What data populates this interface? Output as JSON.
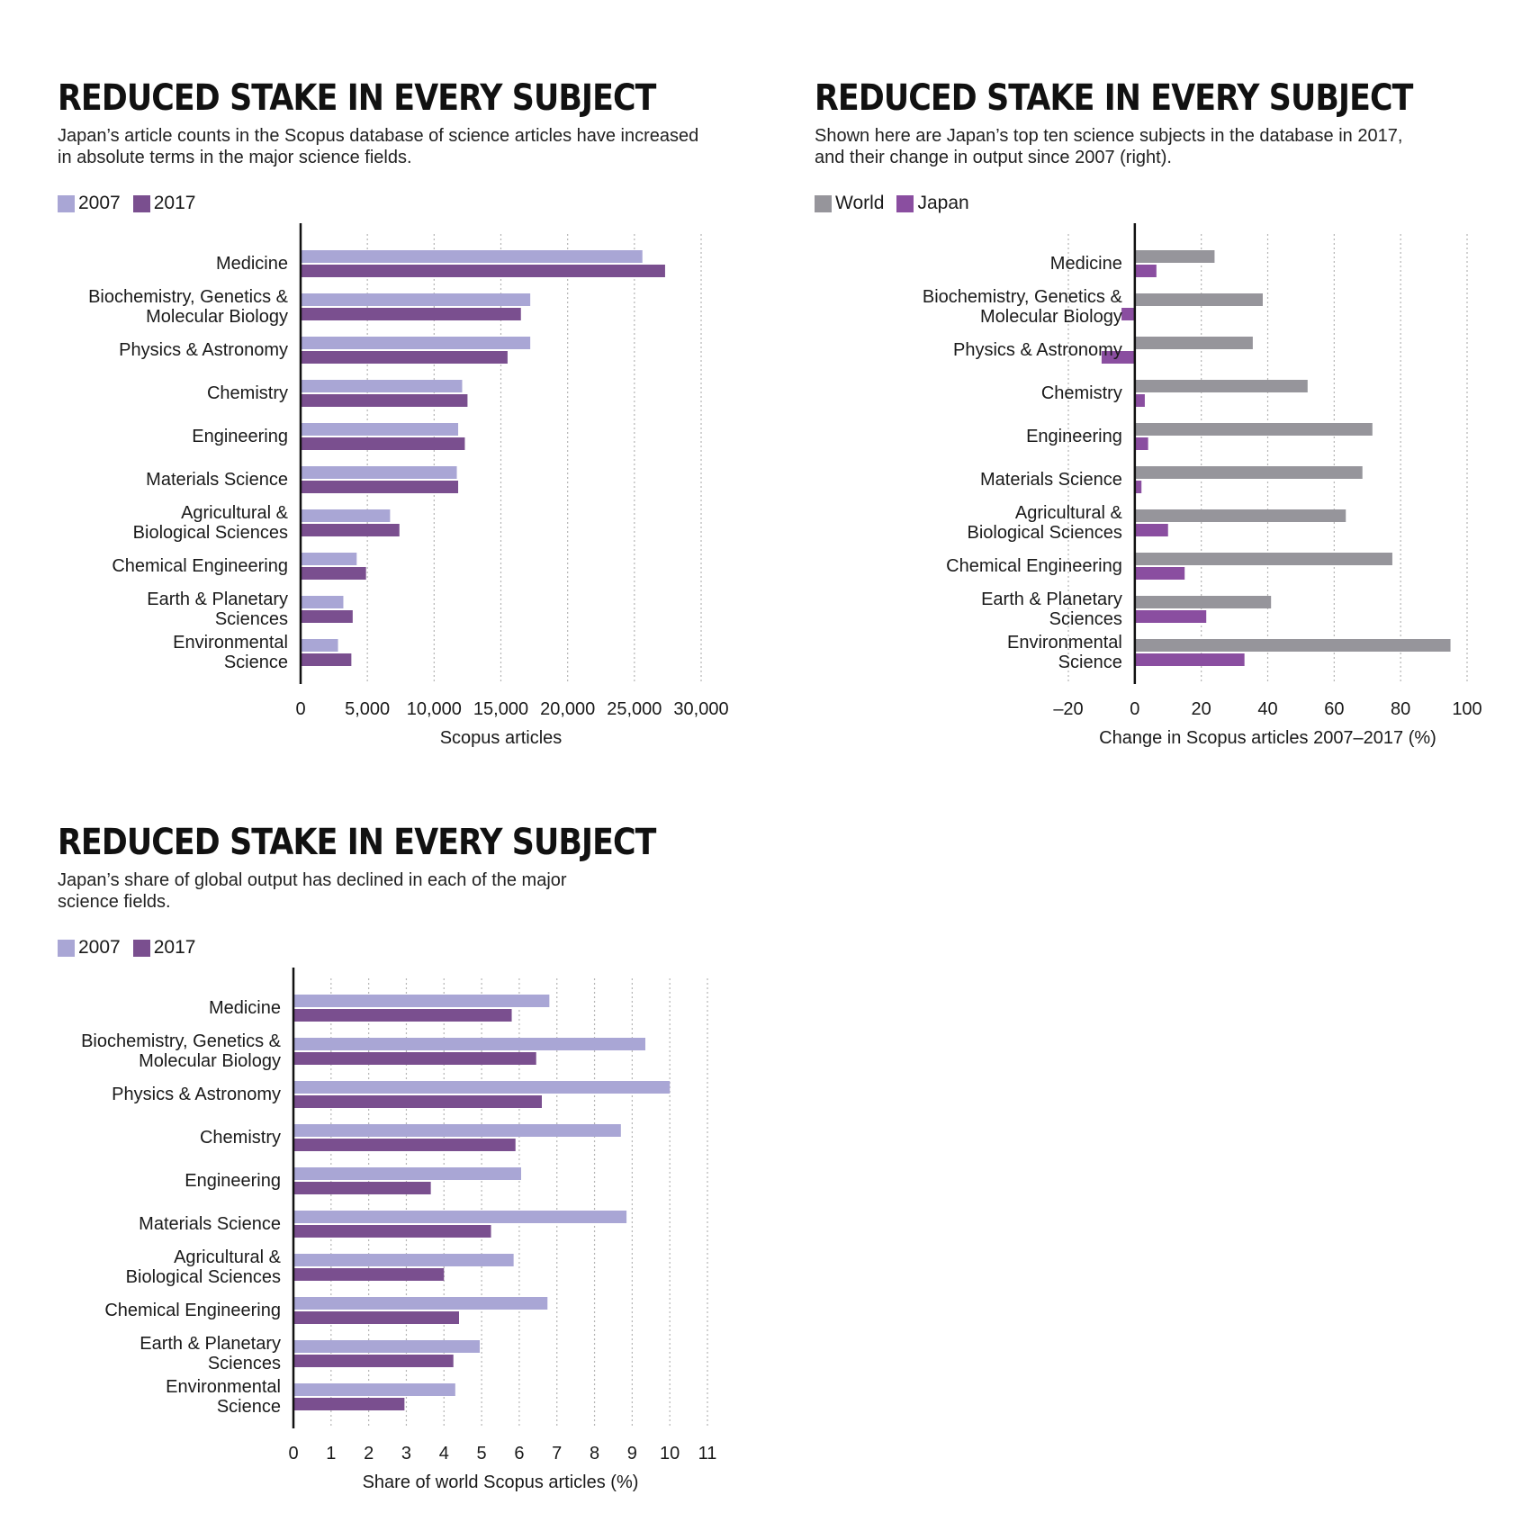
{
  "colors": {
    "light_purple": "#a9a6d5",
    "dark_purple": "#7a4f8f",
    "world_grey": "#96959b",
    "japan_purple": "#8a4ea0",
    "axis": "#111111",
    "grid": "#b5b5b5"
  },
  "chart_data": [
    {
      "id": "counts",
      "type": "bar",
      "orientation": "horizontal",
      "title": "REDUCED STAKE IN EVERY SUBJECT",
      "subtitle": [
        "Japan’s article counts in the Scopus database of science articles have increased",
        "in absolute terms in the major science fields."
      ],
      "categories": [
        [
          "Medicine"
        ],
        [
          "Biochemistry, Genetics &",
          "Molecular Biology"
        ],
        [
          "Physics & Astronomy"
        ],
        [
          "Chemistry"
        ],
        [
          "Engineering"
        ],
        [
          "Materials Science"
        ],
        [
          "Agricultural &",
          "Biological Sciences"
        ],
        [
          "Chemical Engineering"
        ],
        [
          "Earth & Planetary",
          "Sciences"
        ],
        [
          "Environmental",
          "Science"
        ]
      ],
      "series": [
        {
          "name": "2007",
          "color_key": "light_purple",
          "values": [
            25600,
            17200,
            17200,
            12100,
            11800,
            11700,
            6700,
            4200,
            3200,
            2800
          ]
        },
        {
          "name": "2017",
          "color_key": "dark_purple",
          "values": [
            27300,
            16500,
            15500,
            12500,
            12300,
            11800,
            7400,
            4900,
            3900,
            3800
          ]
        }
      ],
      "xlim": [
        0,
        30000
      ],
      "xticks": [
        0,
        5000,
        10000,
        15000,
        20000,
        25000,
        30000
      ],
      "xtick_labels": [
        "0",
        "5,000",
        "10,000",
        "15,000",
        "20,000",
        "25,000",
        "30,000"
      ],
      "xlabel": "Scopus articles",
      "legend_position": "top-left"
    },
    {
      "id": "change",
      "type": "bar",
      "orientation": "horizontal",
      "title": "REDUCED STAKE IN EVERY SUBJECT",
      "subtitle": [
        "Shown here are Japan’s top ten science subjects in the database in 2017,",
        "and their change in output since 2007 (right)."
      ],
      "categories": [
        [
          "Medicine"
        ],
        [
          "Biochemistry, Genetics &",
          "Molecular Biology"
        ],
        [
          "Physics & Astronomy"
        ],
        [
          "Chemistry"
        ],
        [
          "Engineering"
        ],
        [
          "Materials Science"
        ],
        [
          "Agricultural &",
          "Biological Sciences"
        ],
        [
          "Chemical Engineering"
        ],
        [
          "Earth & Planetary",
          "Sciences"
        ],
        [
          "Environmental",
          "Science"
        ]
      ],
      "series": [
        {
          "name": "World",
          "color_key": "world_grey",
          "values": [
            24,
            38.5,
            35.5,
            52,
            71.5,
            68.5,
            63.5,
            77.5,
            41,
            95
          ]
        },
        {
          "name": "Japan",
          "color_key": "japan_purple",
          "values": [
            6.5,
            -4,
            -10,
            3,
            4,
            2,
            10,
            15,
            21.5,
            33
          ]
        }
      ],
      "xlim": [
        -20,
        100
      ],
      "xticks": [
        -20,
        0,
        20,
        40,
        60,
        80,
        100
      ],
      "xtick_labels": [
        "–20",
        "0",
        "20",
        "40",
        "60",
        "80",
        "100"
      ],
      "xlabel": "Change in Scopus articles 2007–2017 (%)",
      "legend_position": "top-left"
    },
    {
      "id": "share",
      "type": "bar",
      "orientation": "horizontal",
      "title": "REDUCED STAKE IN EVERY SUBJECT",
      "subtitle": [
        "Japan’s share of global output has declined in each of the major",
        "science fields."
      ],
      "categories": [
        [
          "Medicine"
        ],
        [
          "Biochemistry, Genetics &",
          "Molecular Biology"
        ],
        [
          "Physics & Astronomy"
        ],
        [
          "Chemistry"
        ],
        [
          "Engineering"
        ],
        [
          "Materials Science"
        ],
        [
          "Agricultural &",
          "Biological Sciences"
        ],
        [
          "Chemical Engineering"
        ],
        [
          "Earth & Planetary",
          "Sciences"
        ],
        [
          "Environmental",
          "Science"
        ]
      ],
      "series": [
        {
          "name": "2007",
          "color_key": "light_purple",
          "values": [
            6.8,
            9.35,
            10,
            8.7,
            6.05,
            8.85,
            5.85,
            6.75,
            4.95,
            4.3
          ]
        },
        {
          "name": "2017",
          "color_key": "dark_purple",
          "values": [
            5.8,
            6.45,
            6.6,
            5.9,
            3.65,
            5.25,
            4,
            4.4,
            4.25,
            2.95
          ]
        }
      ],
      "xlim": [
        0,
        11
      ],
      "xticks": [
        0,
        1,
        2,
        3,
        4,
        5,
        6,
        7,
        8,
        9,
        10,
        11
      ],
      "xtick_labels": [
        "0",
        "1",
        "2",
        "3",
        "4",
        "5",
        "6",
        "7",
        "8",
        "9",
        "10",
        "11"
      ],
      "xlabel": "Share of world Scopus articles (%)",
      "legend_position": "top-left"
    }
  ]
}
